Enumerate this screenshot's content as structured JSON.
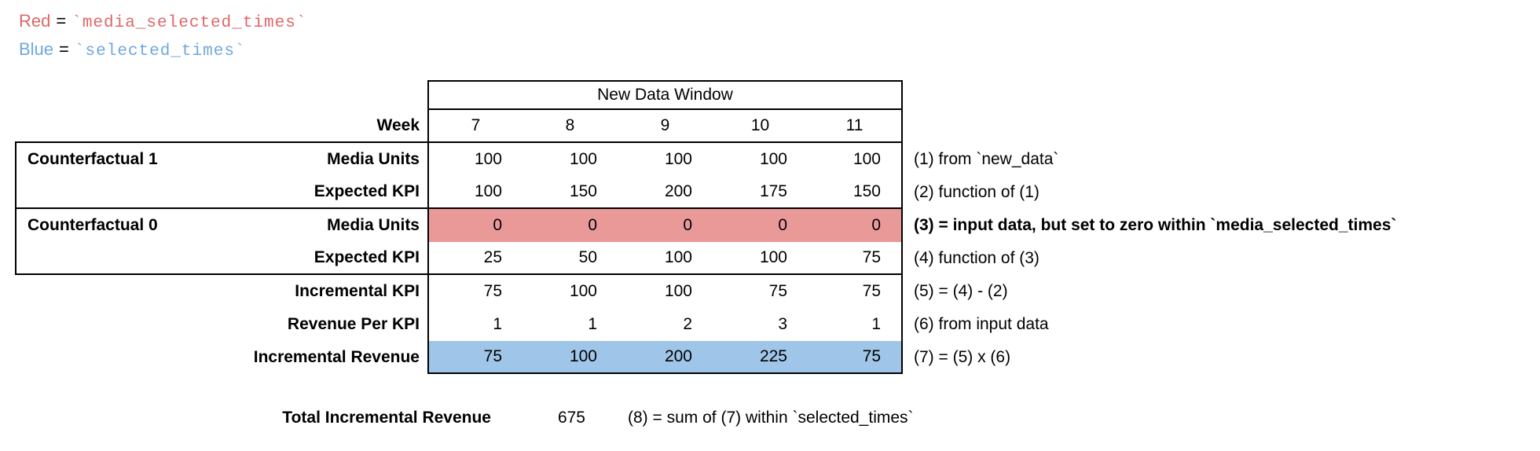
{
  "legend": {
    "eq": "=",
    "red_label": "Red",
    "red_code": "`media_selected_times`",
    "red_color": "#e06666",
    "blue_label": "Blue",
    "blue_code": "`selected_times`",
    "blue_color": "#6fa8dc"
  },
  "table": {
    "window_header": "New Data Window",
    "week_label": "Week",
    "weeks": [
      "7",
      "8",
      "9",
      "10",
      "11"
    ],
    "highlight_red": "#ea9999",
    "highlight_blue": "#9fc5e8",
    "rows": [
      {
        "group": "Counterfactual 1",
        "label": "Media Units",
        "values": [
          "100",
          "100",
          "100",
          "100",
          "100"
        ],
        "note": "(1) from `new_data`"
      },
      {
        "group": "",
        "label": "Expected KPI",
        "values": [
          "100",
          "150",
          "200",
          "175",
          "150"
        ],
        "note": "(2) function of (1)"
      },
      {
        "group": "Counterfactual 0",
        "label": "Media Units",
        "values": [
          "0",
          "0",
          "0",
          "0",
          "0"
        ],
        "note": "(3) = input data, but set to zero within `media_selected_times`"
      },
      {
        "group": "",
        "label": "Expected KPI",
        "values": [
          "25",
          "50",
          "100",
          "100",
          "75"
        ],
        "note": "(4) function of (3)"
      },
      {
        "group": "",
        "label": "Incremental KPI",
        "values": [
          "75",
          "100",
          "100",
          "75",
          "75"
        ],
        "note": "(5) = (4) - (2)"
      },
      {
        "group": "",
        "label": "Revenue Per KPI",
        "values": [
          "1",
          "1",
          "2",
          "3",
          "1"
        ],
        "note": "(6) from input data"
      },
      {
        "group": "",
        "label": "Incremental Revenue",
        "values": [
          "75",
          "100",
          "200",
          "225",
          "75"
        ],
        "note": "(7) = (5) x (6)"
      }
    ]
  },
  "total": {
    "label": "Total Incremental Revenue",
    "value": "675",
    "note": "(8) = sum of (7) within `selected_times`"
  }
}
